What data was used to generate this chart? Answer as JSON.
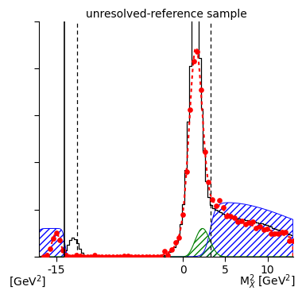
{
  "title": "unresolved-reference sample",
  "xlim": [
    -17,
    13
  ],
  "ylim": [
    0,
    1.0
  ],
  "xticks": [
    -15,
    0,
    5,
    10
  ],
  "xlabel_left": "[GeV$^2$]",
  "xlabel_right": "M$_X^2$ [GeV$^2$]",
  "vline_solid": -14.0,
  "vlines_dashed": [
    -12.5,
    3.3
  ],
  "background_color": "#ffffff"
}
